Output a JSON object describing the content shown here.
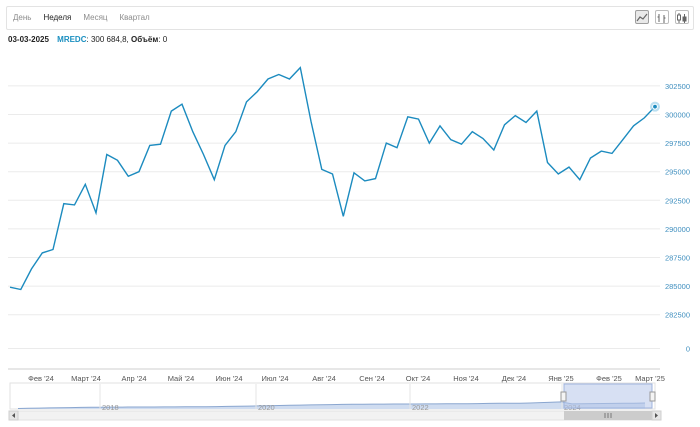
{
  "toolbar": {
    "tabs": [
      {
        "label": "День",
        "active": false
      },
      {
        "label": "Неделя",
        "active": true
      },
      {
        "label": "Месяц",
        "active": false
      },
      {
        "label": "Квартал",
        "active": false
      }
    ],
    "chart_type_buttons": [
      "line-chart-icon",
      "bar-chart-icon",
      "candlestick-icon"
    ]
  },
  "info": {
    "date": "03-03-2025",
    "ticker": "MREDC",
    "value_text": ": 300 684,8, ",
    "volume_label": "Объём",
    "volume_value": ": 0"
  },
  "navigator": {
    "year_labels": [
      "2018",
      "2020",
      "2022",
      "2024"
    ]
  },
  "colors": {
    "line": "#1c8bbf",
    "navigator_fill": "#cfdcf0",
    "selection": "#b6c7e9"
  },
  "chart_data": {
    "type": "line",
    "title": "",
    "xlabel": "",
    "ylabel": "",
    "series": [
      {
        "name": "MREDC",
        "values": [
          284900,
          284700,
          286500,
          287900,
          288200,
          292200,
          292100,
          293900,
          291400,
          296500,
          296000,
          294600,
          295000,
          297300,
          297400,
          300300,
          300900,
          298500,
          296500,
          294300,
          297300,
          298500,
          301100,
          302000,
          303100,
          303500,
          303100,
          304100,
          299400,
          295200,
          294800,
          291100,
          294900,
          294200,
          294400,
          297500,
          297100,
          299800,
          299600,
          297500,
          299000,
          297800,
          297400,
          298500,
          297900,
          296900,
          299100,
          299900,
          299300,
          300300,
          295800,
          294800,
          295400,
          294300,
          296200,
          296800,
          296600,
          297800,
          299000,
          299700,
          300685
        ]
      }
    ],
    "x_tick_labels": [
      "Фев '24",
      "Март '24",
      "Апр '24",
      "Май '24",
      "Июн '24",
      "Июл '24",
      "Авг '24",
      "Сен '24",
      "Окт '24",
      "Ноя '24",
      "Дек '24",
      "Янв '25",
      "Фев '25",
      "Март '25"
    ],
    "y_ticks": [
      0,
      282500,
      285000,
      287500,
      290000,
      292500,
      295000,
      297500,
      300000,
      302500
    ],
    "last_point": {
      "date": "03-03-2025",
      "value": 300684.8,
      "volume": 0
    }
  }
}
